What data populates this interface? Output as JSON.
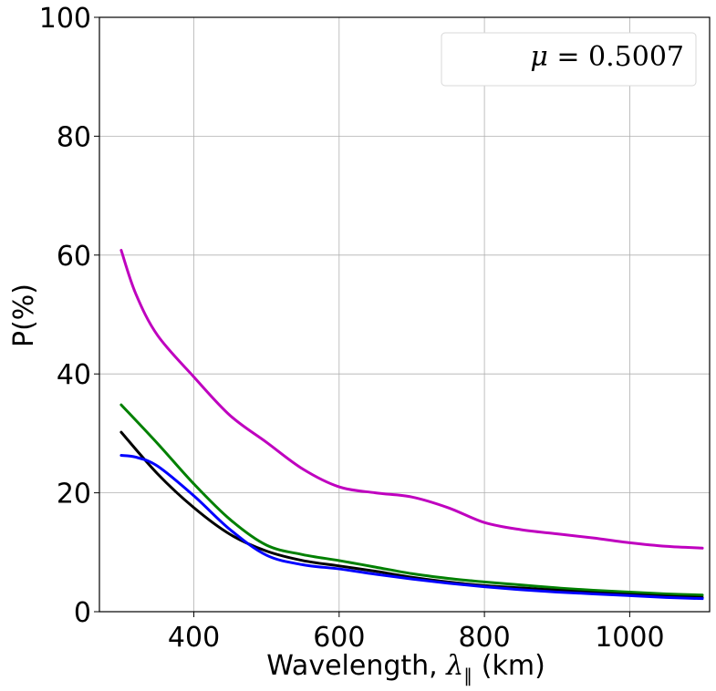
{
  "chart_data": {
    "type": "line",
    "xlabel_prefix": "Wavelength, ",
    "xlabel_symbol": "λ",
    "xlabel_subscript": "∥",
    "xlabel_suffix": " (km)",
    "ylabel": "P(%)",
    "xlim": [
      270,
      1110
    ],
    "ylim": [
      0,
      100
    ],
    "xticks": [
      400,
      600,
      800,
      1000
    ],
    "yticks": [
      0,
      20,
      40,
      60,
      80,
      100
    ],
    "grid": true,
    "legend_position": "top-right",
    "legend": {
      "symbol": "μ",
      "text": " = 0.5007"
    },
    "series": [
      {
        "color": "#bf00bf",
        "x": [
          300,
          320,
          350,
          400,
          450,
          500,
          550,
          600,
          650,
          700,
          750,
          800,
          850,
          900,
          950,
          1000,
          1050,
          1100
        ],
        "y": [
          60.8,
          53.5,
          46.5,
          39.5,
          33.0,
          28.5,
          24.0,
          21.0,
          20.0,
          19.3,
          17.5,
          15.0,
          13.8,
          13.1,
          12.4,
          11.6,
          11.0,
          10.7
        ]
      },
      {
        "color": "#008000",
        "x": [
          300,
          350,
          400,
          450,
          500,
          550,
          600,
          650,
          700,
          750,
          800,
          850,
          900,
          950,
          1000,
          1050,
          1100
        ],
        "y": [
          34.8,
          28.3,
          21.5,
          15.5,
          11.2,
          9.6,
          8.6,
          7.5,
          6.4,
          5.6,
          5.0,
          4.5,
          4.0,
          3.6,
          3.3,
          3.0,
          2.8
        ]
      },
      {
        "color": "#000000",
        "x": [
          300,
          350,
          400,
          450,
          500,
          550,
          600,
          650,
          700,
          750,
          800,
          850,
          900,
          950,
          1000,
          1050,
          1100
        ],
        "y": [
          30.2,
          23.2,
          17.5,
          13.0,
          10.2,
          8.6,
          7.7,
          6.8,
          5.8,
          5.0,
          4.4,
          4.0,
          3.6,
          3.2,
          2.9,
          2.6,
          2.4
        ]
      },
      {
        "color": "#0000ff",
        "x": [
          300,
          320,
          350,
          400,
          450,
          500,
          550,
          600,
          650,
          700,
          750,
          800,
          850,
          900,
          950,
          1000,
          1050,
          1100
        ],
        "y": [
          26.3,
          26.0,
          24.5,
          19.5,
          13.8,
          9.5,
          7.9,
          7.2,
          6.3,
          5.5,
          4.8,
          4.2,
          3.7,
          3.3,
          3.0,
          2.7,
          2.4,
          2.2
        ]
      }
    ]
  }
}
